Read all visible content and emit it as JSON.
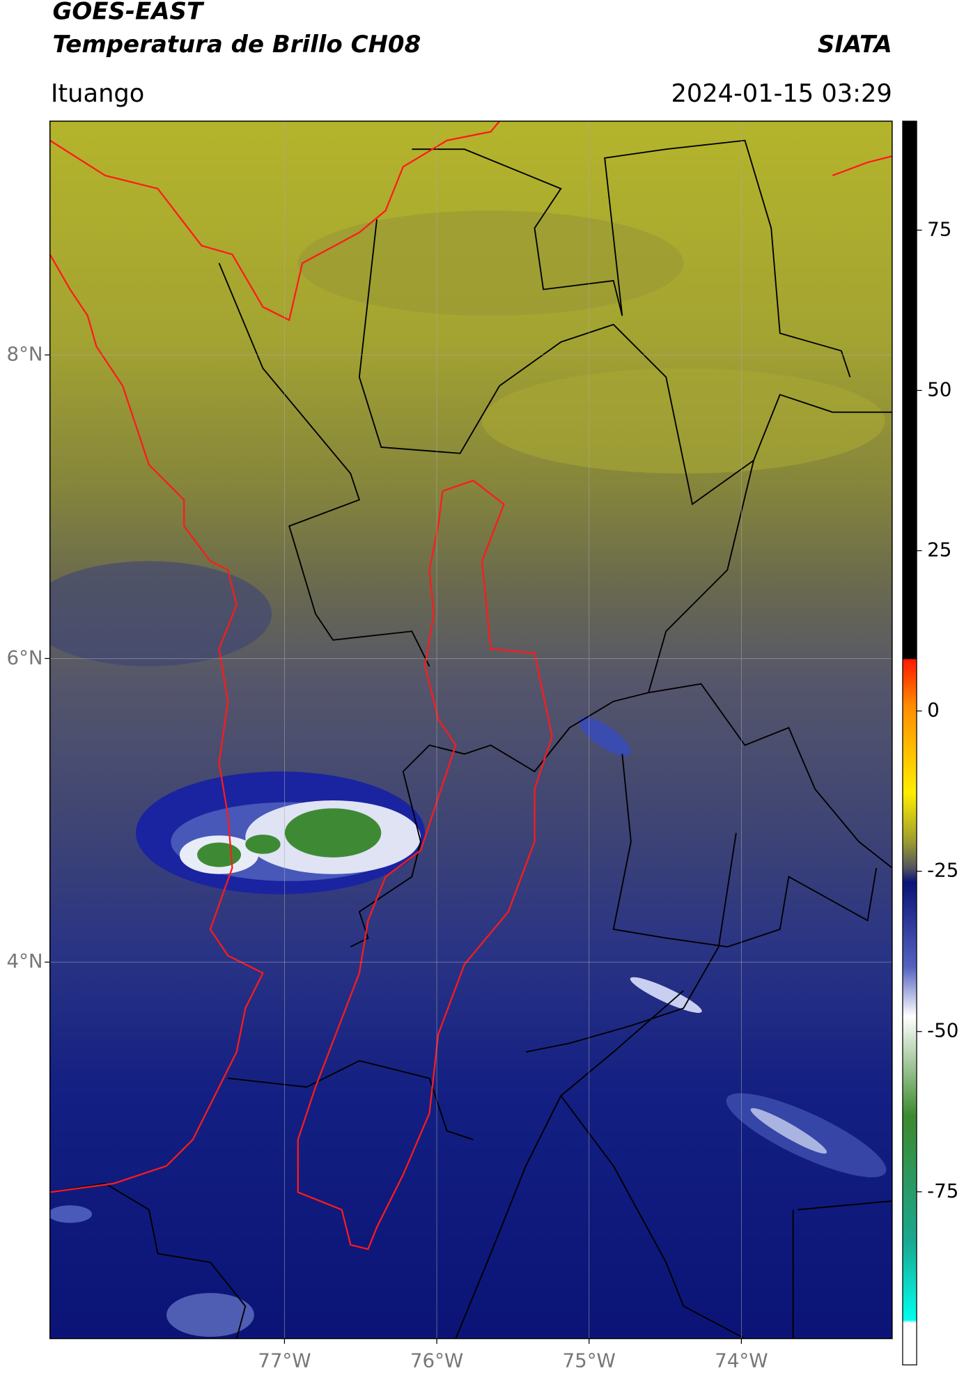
{
  "header": {
    "title": "GOES-EAST",
    "subtitle": "Temperatura de Brillo CH08",
    "brand": "SIATA",
    "location": "Ituango",
    "datetime": "2024-01-15 03:29"
  },
  "map": {
    "xlim": [
      -78.54,
      -73.01
    ],
    "ylim": [
      1.52,
      9.54
    ],
    "xticks": [
      {
        "value": -77,
        "label": "77°W"
      },
      {
        "value": -76,
        "label": "76°W"
      },
      {
        "value": -75,
        "label": "75°W"
      },
      {
        "value": -74,
        "label": "74°W"
      }
    ],
    "yticks": [
      {
        "value": 8,
        "label": "8°N"
      },
      {
        "value": 6,
        "label": "6°N"
      },
      {
        "value": 4,
        "label": "4°N"
      }
    ],
    "grid": true
  },
  "colorbar": {
    "lim": [
      -102,
      92
    ],
    "ticks": [
      75,
      50,
      25,
      0,
      -25,
      -50,
      -75
    ]
  }
}
